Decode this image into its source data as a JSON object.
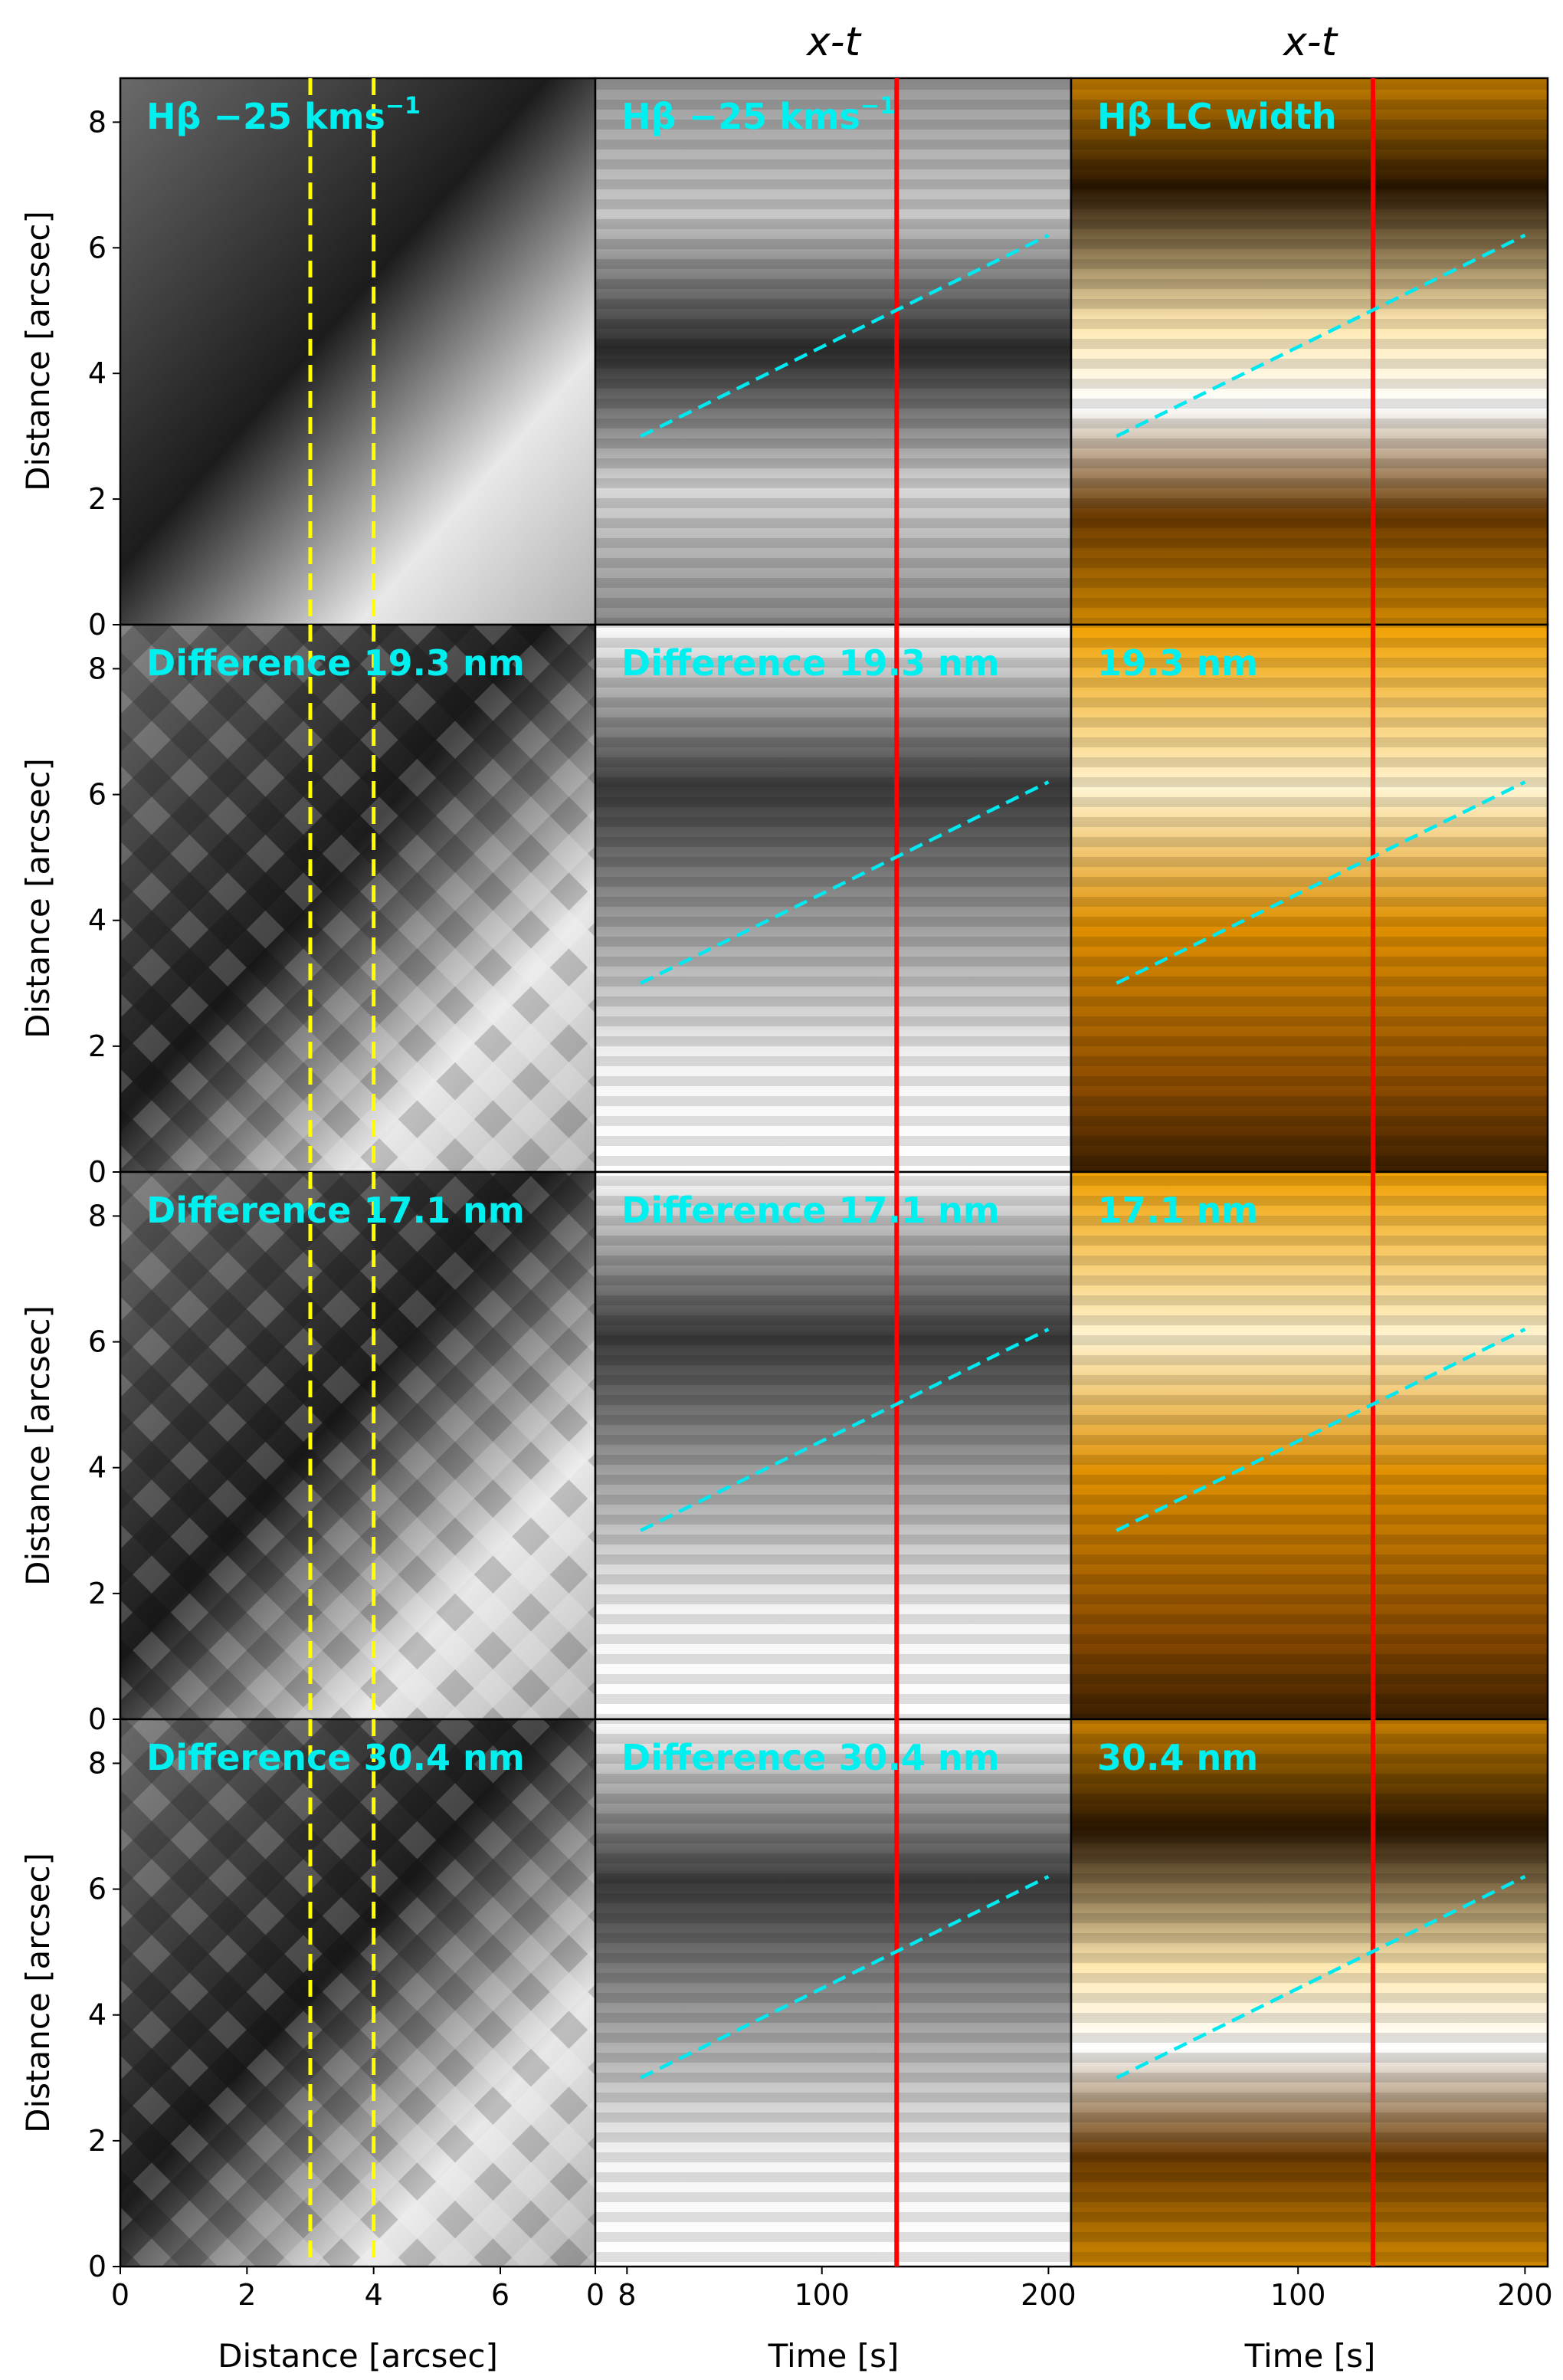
{
  "column_titles": [
    "",
    "x-t",
    "x-t"
  ],
  "axes": {
    "ylabel": "Distance [arcsec]",
    "xlabel_map": "Distance [arcsec]",
    "xlabel_time": "Time [s]",
    "y_ticks": [
      "0",
      "2",
      "4",
      "6",
      "8"
    ],
    "x_ticks_map": [
      "0",
      "2",
      "4",
      "6",
      "8"
    ],
    "x_ticks_time": [
      "0",
      "100",
      "200"
    ],
    "x_ticks_time_right": [
      "100",
      "200"
    ]
  },
  "rows": [
    {
      "labels": [
        "Hβ −25 kms",
        "Hβ −25 kms",
        "Hβ LC width"
      ],
      "sup": [
        "−1",
        "−1",
        ""
      ]
    },
    {
      "labels": [
        "Difference 19.3 nm",
        "Difference 19.3 nm",
        "19.3 nm"
      ],
      "sup": [
        "",
        "",
        ""
      ]
    },
    {
      "labels": [
        "Difference 17.1 nm",
        "Difference 17.1 nm",
        "17.1 nm"
      ],
      "sup": [
        "",
        "",
        ""
      ]
    },
    {
      "labels": [
        "Difference 30.4 nm",
        "Difference 30.4 nm",
        "30.4 nm"
      ],
      "sup": [
        "",
        "",
        ""
      ]
    }
  ],
  "colors": {
    "slit_lines": "#ffff00",
    "time_marker": "#ff0000",
    "fit_line": "#00e8f0",
    "label": "#00f0f0"
  },
  "chart_data": {
    "type": "heatmap",
    "map_xlim": [
      0,
      7.5
    ],
    "map_ylim": [
      0,
      8.7
    ],
    "time_xlim": [
      0,
      210
    ],
    "slit_x": [
      3,
      4
    ],
    "time_marker_t": 133,
    "fit_line": {
      "t": [
        20,
        200
      ],
      "d": [
        3,
        6.2
      ]
    },
    "fit_line_right": {
      "t": [
        20,
        200
      ],
      "d": [
        3,
        6.2
      ]
    }
  }
}
